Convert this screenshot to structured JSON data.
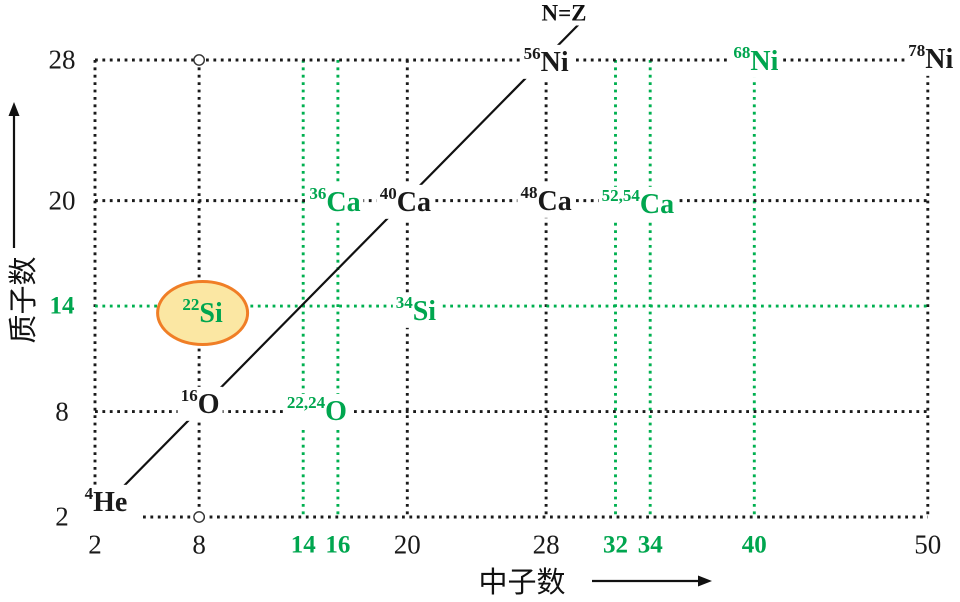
{
  "chart_data": {
    "type": "scatter",
    "title": "",
    "xlabel": "中子数",
    "ylabel": "质子数",
    "x_range": [
      2,
      50
    ],
    "y_range": [
      2,
      28
    ],
    "grid": "dotted",
    "diagonal_label": "N=Z",
    "x_ticks": [
      {
        "value": 2,
        "magic": "known"
      },
      {
        "value": 8,
        "magic": "known"
      },
      {
        "value": 14,
        "magic": "new"
      },
      {
        "value": 16,
        "magic": "new"
      },
      {
        "value": 20,
        "magic": "known"
      },
      {
        "value": 28,
        "magic": "known"
      },
      {
        "value": 32,
        "magic": "new"
      },
      {
        "value": 34,
        "magic": "new"
      },
      {
        "value": 40,
        "magic": "new"
      },
      {
        "value": 50,
        "magic": "known"
      }
    ],
    "y_ticks": [
      {
        "value": 28,
        "magic": "known"
      },
      {
        "value": 20,
        "magic": "known"
      },
      {
        "value": 14,
        "magic": "new"
      },
      {
        "value": 8,
        "magic": "known"
      },
      {
        "value": 2,
        "magic": "known"
      }
    ],
    "gridlines": {
      "vertical_n": [
        2,
        8,
        14,
        16,
        20,
        28,
        32,
        34,
        40,
        50
      ],
      "horizontal_z": [
        2,
        8,
        14,
        20,
        28
      ]
    },
    "nuclides": [
      {
        "id": "4He",
        "mass": "4",
        "symbol": "He",
        "n": 2,
        "z": 2,
        "magic": "known"
      },
      {
        "id": "16O",
        "mass": "16",
        "symbol": "O",
        "n": 8,
        "z": 8,
        "magic": "known"
      },
      {
        "id": "22,24O",
        "mass": "22,24",
        "symbol": "O",
        "n": [
          14,
          16
        ],
        "z": 8,
        "magic": "new"
      },
      {
        "id": "22Si",
        "mass": "22",
        "symbol": "Si",
        "n": 8,
        "z": 14,
        "magic": "new",
        "circled": true
      },
      {
        "id": "34Si",
        "mass": "34",
        "symbol": "Si",
        "n": 20,
        "z": 14,
        "magic": "new"
      },
      {
        "id": "36Ca",
        "mass": "36",
        "symbol": "Ca",
        "n": 16,
        "z": 20,
        "magic": "new"
      },
      {
        "id": "40Ca",
        "mass": "40",
        "symbol": "Ca",
        "n": 20,
        "z": 20,
        "magic": "known"
      },
      {
        "id": "48Ca",
        "mass": "48",
        "symbol": "Ca",
        "n": 28,
        "z": 20,
        "magic": "known"
      },
      {
        "id": "52,54Ca",
        "mass": "52,54",
        "symbol": "Ca",
        "n": [
          32,
          34
        ],
        "z": 20,
        "magic": "new"
      },
      {
        "id": "56Ni",
        "mass": "56",
        "symbol": "Ni",
        "n": 28,
        "z": 28,
        "magic": "known"
      },
      {
        "id": "68Ni",
        "mass": "68",
        "symbol": "Ni",
        "n": 40,
        "z": 28,
        "magic": "new"
      },
      {
        "id": "78Ni",
        "mass": "78",
        "symbol": "Ni",
        "n": 50,
        "z": 28,
        "magic": "known"
      }
    ],
    "markers": [
      {
        "shape": "open-circle",
        "n": 8,
        "z": 28
      },
      {
        "shape": "open-circle",
        "n": 8,
        "z": 2
      }
    ],
    "colors": {
      "known_magic_text": "#1a1a1a",
      "known_magic_line": "#1a1a1a",
      "new_magic_text": "#00A64F",
      "new_magic_line": "#00B050",
      "diagonal_line": "#111111",
      "highlight_ellipse_fill": "#FBE7A3",
      "highlight_ellipse_stroke": "#F07E26"
    }
  }
}
